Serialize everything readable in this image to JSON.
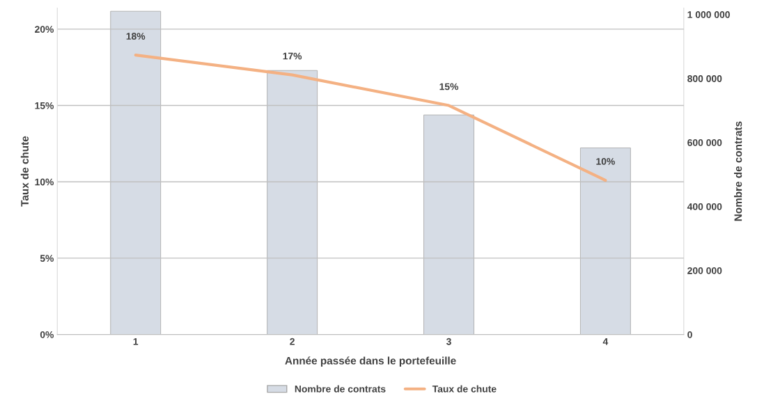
{
  "chart_data": {
    "type": "bar",
    "xlabel": "Année passée dans le portefeuille",
    "ylabel": "Taux de chute",
    "y2label": "Nombre de contrats",
    "categories": [
      "1",
      "2",
      "3",
      "4"
    ],
    "series": [
      {
        "name": "Nombre de contrats",
        "axis": "y2",
        "color": "#d6dce5",
        "values": [
          1010000,
          825000,
          686000,
          583000
        ]
      },
      {
        "name": "Taux de chute",
        "type": "line",
        "axis": "y",
        "color": "#f4b183",
        "values": [
          18.3,
          17.0,
          15.0,
          10.1
        ],
        "value_labels": [
          "18%",
          "17%",
          "15%",
          "10%"
        ]
      }
    ],
    "ylim": [
      0,
      21.38
    ],
    "yticks": [
      {
        "value": 0,
        "label": "0%"
      },
      {
        "value": 5,
        "label": "5%"
      },
      {
        "value": 10,
        "label": "10%"
      },
      {
        "value": 15,
        "label": "15%"
      },
      {
        "value": 20,
        "label": "20%"
      }
    ],
    "y2lim": [
      0,
      1020000
    ],
    "y2ticks": [
      {
        "value": 0,
        "label": "0"
      },
      {
        "value": 200000,
        "label": "200 000"
      },
      {
        "value": 400000,
        "label": "400 000"
      },
      {
        "value": 600000,
        "label": "600 000"
      },
      {
        "value": 800000,
        "label": "800 000"
      },
      {
        "value": 1000000,
        "label": "1 000 000"
      }
    ],
    "grid": "y",
    "legend": "bottom",
    "marker": "none",
    "line_style": "solid"
  }
}
